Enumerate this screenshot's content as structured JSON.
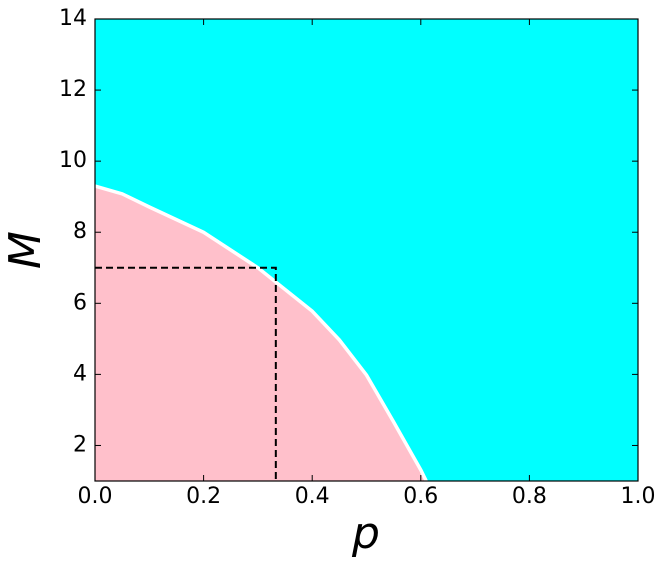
{
  "chart_data": {
    "type": "area",
    "x_label": "p",
    "y_label": "M",
    "x": [
      0,
      0.05,
      0.1,
      0.2,
      0.3,
      0.4,
      0.45,
      0.5,
      0.55,
      0.6,
      0.61
    ],
    "values": [
      9.3,
      9.08,
      8.71,
      8.0,
      7.0,
      5.78,
      4.97,
      3.98,
      2.66,
      1.31,
      1.0
    ],
    "below_color": "#ffc0cb",
    "above_color": "#00ffff",
    "line_color": "#ffffff",
    "reference": {
      "x": 0.333,
      "y": 7
    },
    "xlim": [
      0,
      1
    ],
    "ylim": [
      1,
      14
    ],
    "xticks": [
      {
        "value": 0,
        "label": "0.0"
      },
      0.2,
      0.4,
      0.6,
      0.8,
      {
        "value": 1,
        "label": "1.0"
      }
    ],
    "yticks": [
      2,
      4,
      6,
      8,
      10,
      12,
      14
    ]
  }
}
